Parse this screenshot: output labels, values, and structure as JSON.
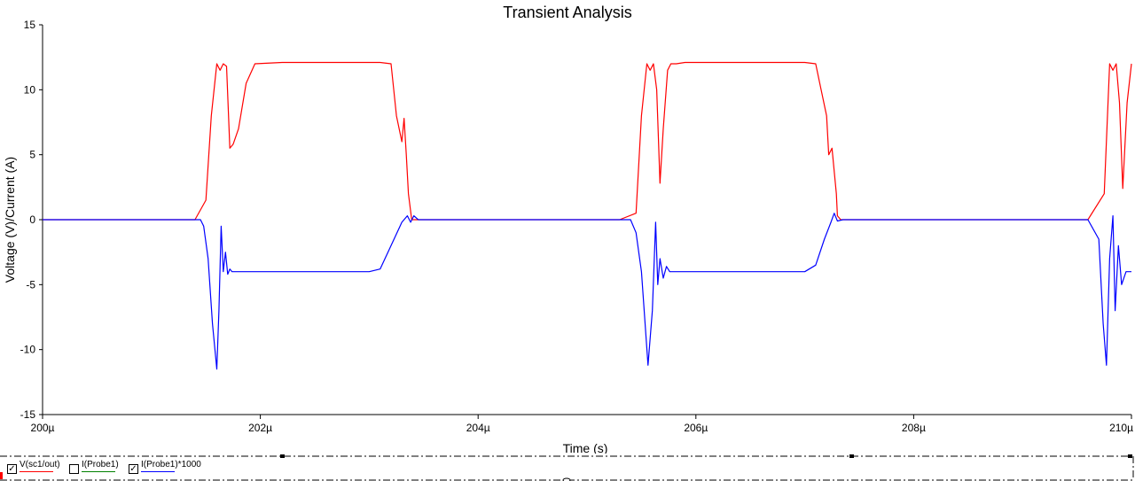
{
  "chart_data": {
    "type": "line",
    "title": "Transient Analysis",
    "xlabel": "Time (s)",
    "ylabel": "Voltage (V)/Current (A)",
    "xlim": [
      200,
      210
    ],
    "ylim": [
      -15,
      15
    ],
    "x_ticks": [
      {
        "v": 200,
        "label": "200µ"
      },
      {
        "v": 202,
        "label": "202µ"
      },
      {
        "v": 204,
        "label": "204µ"
      },
      {
        "v": 206,
        "label": "206µ"
      },
      {
        "v": 208,
        "label": "208µ"
      },
      {
        "v": 210,
        "label": "210µ"
      }
    ],
    "y_ticks": [
      {
        "v": 15,
        "label": "15"
      },
      {
        "v": 10,
        "label": "10"
      },
      {
        "v": 5,
        "label": "5"
      },
      {
        "v": 0,
        "label": "0"
      },
      {
        "v": -5,
        "label": "-5"
      },
      {
        "v": -10,
        "label": "-10"
      },
      {
        "v": -15,
        "label": "-15"
      }
    ],
    "grid": false,
    "legend_position": "bottom",
    "series": [
      {
        "name": "V(sc1/out)",
        "color": "#ff0000",
        "visible": true,
        "x": [
          200.0,
          201.4,
          201.5,
          201.55,
          201.6,
          201.63,
          201.66,
          201.69,
          201.72,
          201.75,
          201.8,
          201.87,
          201.95,
          202.2,
          202.6,
          203.0,
          203.1,
          203.2,
          203.25,
          203.3,
          203.32,
          203.34,
          203.36,
          203.39,
          203.5,
          205.3,
          205.45,
          205.5,
          205.55,
          205.58,
          205.61,
          205.64,
          205.67,
          205.7,
          205.74,
          205.77,
          205.82,
          205.9,
          206.0,
          206.6,
          207.0,
          207.1,
          207.15,
          207.2,
          207.22,
          207.25,
          207.29,
          207.3,
          207.33,
          209.6,
          209.75,
          209.8,
          209.83,
          209.86,
          209.89,
          209.92,
          209.96,
          210.0
        ],
        "y": [
          0,
          0,
          1.5,
          8,
          12,
          11.5,
          12,
          11.8,
          5.5,
          5.8,
          7,
          10.5,
          12,
          12.1,
          12.1,
          12.1,
          12.1,
          12.0,
          8,
          6,
          7.8,
          5,
          2,
          0,
          0,
          0,
          0.5,
          8,
          12,
          11.5,
          12,
          10,
          2.8,
          7,
          11.5,
          12,
          12,
          12.1,
          12.1,
          12.1,
          12.1,
          12.0,
          10,
          8,
          5,
          5.5,
          2,
          0.3,
          0,
          0,
          2,
          12,
          11.5,
          12,
          9,
          2.4,
          9,
          12
        ]
      },
      {
        "name": "I(Probe1)",
        "color": "#008000",
        "visible": false,
        "x": [],
        "y": []
      },
      {
        "name": "I(Probe1)*1000",
        "color": "#0000ff",
        "visible": true,
        "x": [
          200.0,
          201.45,
          201.48,
          201.52,
          201.56,
          201.6,
          201.62,
          201.64,
          201.66,
          201.68,
          201.7,
          201.72,
          201.74,
          201.78,
          201.85,
          202.5,
          203.0,
          203.1,
          203.2,
          203.3,
          203.35,
          203.38,
          203.41,
          203.45,
          203.5,
          203.55,
          203.6,
          205.4,
          205.45,
          205.5,
          205.56,
          205.6,
          205.63,
          205.65,
          205.67,
          205.7,
          205.73,
          205.76,
          205.8,
          205.9,
          206.5,
          207.0,
          207.1,
          207.18,
          207.24,
          207.27,
          207.3,
          207.35,
          207.4,
          209.6,
          209.7,
          209.74,
          209.77,
          209.8,
          209.83,
          209.85,
          209.88,
          209.91,
          209.95,
          210.0
        ],
        "y": [
          0,
          0,
          -0.5,
          -3,
          -8,
          -11.5,
          -7,
          -0.5,
          -4,
          -2.5,
          -4.2,
          -3.8,
          -4,
          -4,
          -4,
          -4,
          -4,
          -3.8,
          -2,
          -0.2,
          0.3,
          -0.2,
          0.3,
          0,
          0,
          0,
          0,
          0,
          -1,
          -4,
          -11.2,
          -7,
          -0.2,
          -5,
          -3,
          -4.5,
          -3.6,
          -4,
          -4,
          -4,
          -4,
          -4,
          -3.5,
          -1.5,
          -0.2,
          0.5,
          -0.1,
          0,
          0,
          0,
          -1.5,
          -8,
          -11.2,
          -3,
          0.3,
          -7,
          -2,
          -5,
          -4,
          -4
        ]
      }
    ]
  }
}
